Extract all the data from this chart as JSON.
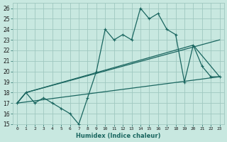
{
  "background_color": "#c8e8e0",
  "grid_color": "#a0c8c0",
  "line_color": "#1a6660",
  "xlim": [
    -0.5,
    23.5
  ],
  "ylim": [
    15,
    26.5
  ],
  "xlabel": "Humidex (Indice chaleur)",
  "xticks": [
    0,
    1,
    2,
    3,
    4,
    5,
    6,
    7,
    8,
    9,
    10,
    11,
    12,
    13,
    14,
    15,
    16,
    17,
    18,
    19,
    20,
    21,
    22,
    23
  ],
  "yticks": [
    15,
    16,
    17,
    18,
    19,
    20,
    21,
    22,
    23,
    24,
    25,
    26
  ],
  "series1_x": [
    0,
    1,
    2,
    3,
    4,
    5,
    6,
    7,
    8,
    9,
    10,
    11,
    12,
    13,
    14,
    15,
    16,
    17,
    18,
    19,
    20,
    21,
    22,
    23
  ],
  "series1_y": [
    17.0,
    18.0,
    17.0,
    17.5,
    17.0,
    16.5,
    16.0,
    15.0,
    17.5,
    20.0,
    24.0,
    23.0,
    23.5,
    23.0,
    26.0,
    25.0,
    25.5,
    24.0,
    23.5,
    19.0,
    22.5,
    20.5,
    19.5,
    19.5
  ],
  "series2_x": [
    0,
    1,
    23
  ],
  "series2_y": [
    17.0,
    18.0,
    23.0
  ],
  "series3_x": [
    0,
    1,
    20,
    22,
    23
  ],
  "series3_y": [
    17.0,
    18.0,
    22.5,
    20.5,
    19.5
  ],
  "series4_x": [
    0,
    23
  ],
  "series4_y": [
    17.0,
    19.5
  ]
}
